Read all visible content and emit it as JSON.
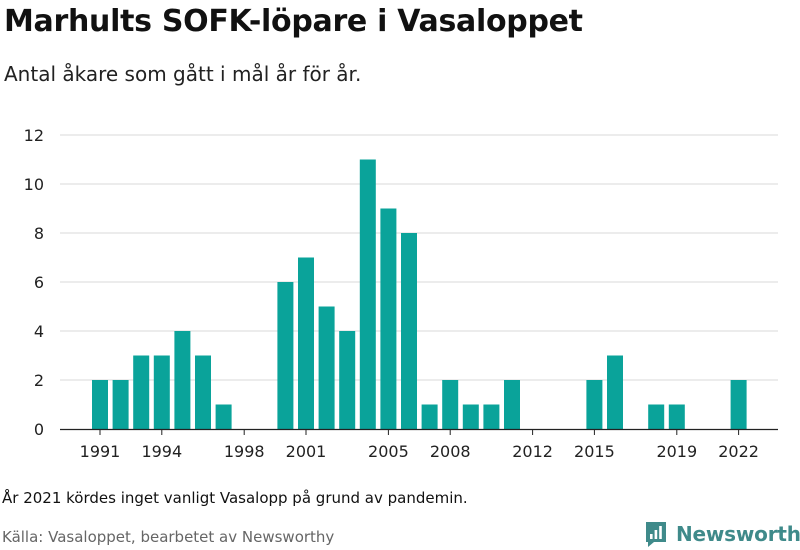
{
  "title": "Marhults SOFK-löpare i Vasaloppet",
  "subtitle": "Antal åkare som gått i mål år för år.",
  "note": "År 2021 kördes inget vanligt Vasalopp på grund av pandemin.",
  "source": "Källa: Vasaloppet, bearbetet av Newsworthy",
  "brand": {
    "name": "Newsworthy",
    "icon": "newsworthy-logo-icon",
    "color": "#3f8a8a"
  },
  "colors": {
    "bar": "#0aa39a",
    "grid": "#d9d9d9",
    "axis": "#222222"
  },
  "chart_data": {
    "type": "bar",
    "x": [
      1991,
      1992,
      1993,
      1994,
      1995,
      1996,
      1997,
      1998,
      1999,
      2000,
      2001,
      2002,
      2003,
      2004,
      2005,
      2006,
      2007,
      2008,
      2009,
      2010,
      2011,
      2012,
      2013,
      2014,
      2015,
      2016,
      2017,
      2018,
      2019,
      2020,
      2021,
      2022
    ],
    "values": [
      2,
      2,
      3,
      3,
      4,
      3,
      1,
      0,
      0,
      6,
      7,
      5,
      4,
      11,
      9,
      8,
      1,
      2,
      1,
      1,
      2,
      0,
      0,
      0,
      2,
      3,
      0,
      1,
      1,
      0,
      0,
      2
    ],
    "x_ticks": [
      1991,
      1994,
      1998,
      2001,
      2005,
      2008,
      2012,
      2015,
      2019,
      2022
    ],
    "y_ticks": [
      0,
      2,
      4,
      6,
      8,
      10,
      12
    ],
    "ylim": [
      0,
      12
    ],
    "xlabel": "",
    "ylabel": "",
    "grid": true,
    "legend": "none"
  }
}
